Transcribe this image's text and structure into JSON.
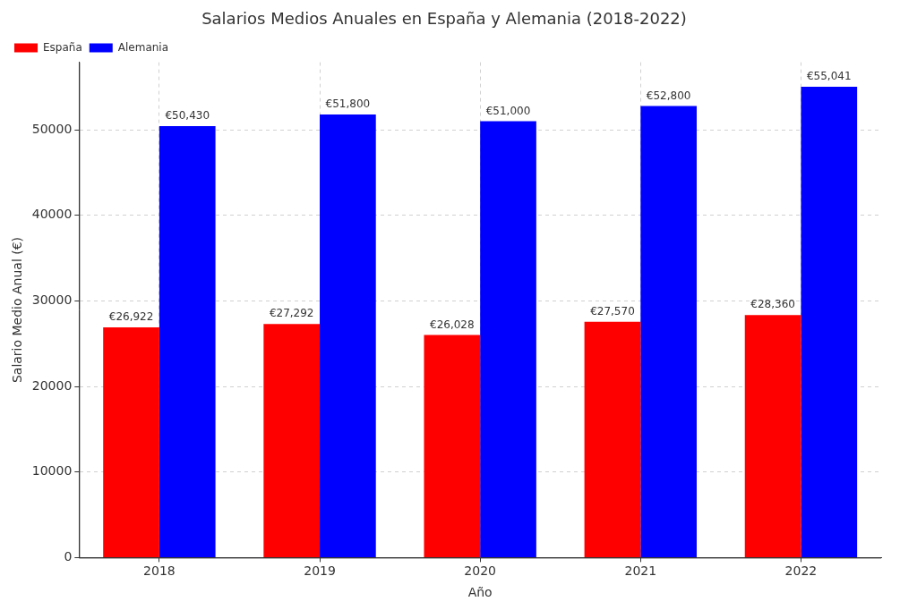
{
  "chart_data": {
    "type": "bar",
    "title": "Salarios Medios Anuales en España y Alemania (2018-2022)",
    "x_label": "Año",
    "y_label": "Salario Medio Anual (€)",
    "categories": [
      "2018",
      "2019",
      "2020",
      "2021",
      "2022"
    ],
    "series": [
      {
        "name": "España",
        "color": "#ff0000",
        "values": [
          26922,
          27292,
          26028,
          27570,
          28360
        ],
        "value_labels": [
          "€26,922",
          "€27,292",
          "€26,028",
          "€27,570",
          "€28,360"
        ]
      },
      {
        "name": "Alemania",
        "color": "#0000ff",
        "values": [
          50430,
          51800,
          51000,
          52800,
          55041
        ],
        "value_labels": [
          "€50,430",
          "€51,800",
          "€51,000",
          "€52,800",
          "€55,041"
        ]
      }
    ],
    "ylim": [
      0,
      57900
    ],
    "yticks": [
      0,
      10000,
      20000,
      30000,
      40000,
      50000
    ],
    "grid": true,
    "legend": "upper left",
    "data_labels": true
  }
}
